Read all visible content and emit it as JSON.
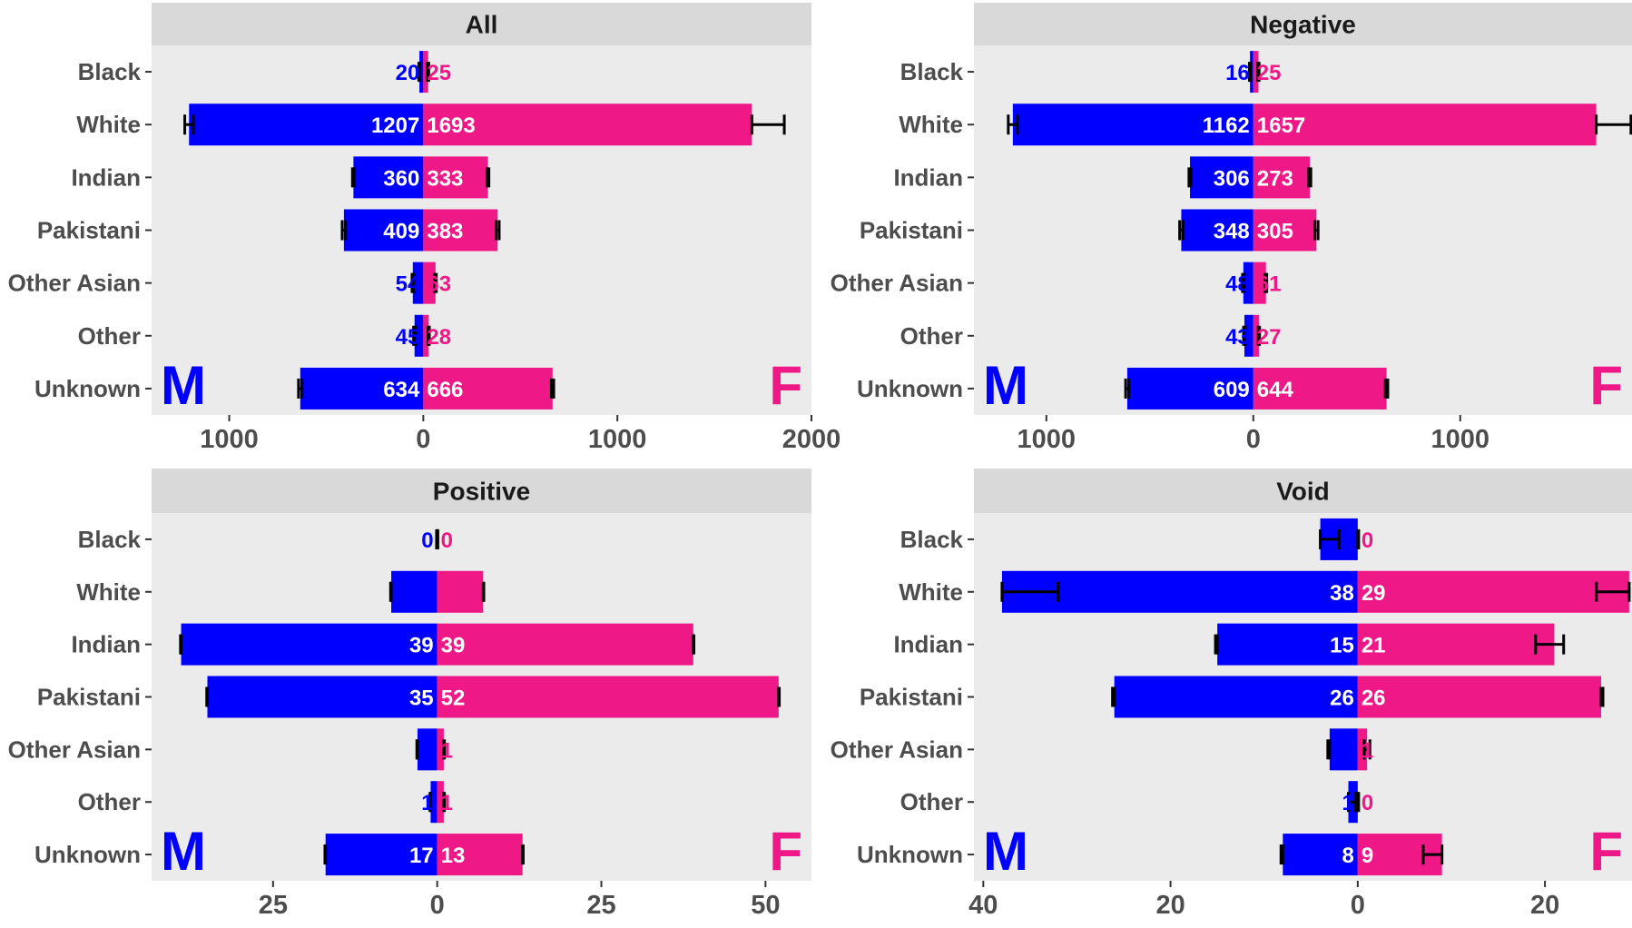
{
  "colors": {
    "male": "#0000ff",
    "female": "#ee1887",
    "panel_bg": "#ebebeb",
    "strip_bg": "#d9d9d9",
    "axis_text": "#4d4d4d",
    "on_bar_text": "#ffffff"
  },
  "chart_data": [
    {
      "type": "bar",
      "orientation": "horizontal-back-to-back",
      "title": "All",
      "categories": [
        "Black",
        "White",
        "Indian",
        "Pakistani",
        "Other Asian",
        "Other",
        "Unknown"
      ],
      "series": [
        {
          "name": "M",
          "values": [
            20,
            1207,
            360,
            409,
            54,
            45,
            634
          ],
          "error_bars": [
            [
              17,
              23
            ],
            [
              1185,
              1229
            ],
            [
              355,
              365
            ],
            [
              400,
              418
            ],
            [
              50,
              58
            ],
            [
              40,
              50
            ],
            [
              625,
              643
            ]
          ]
        },
        {
          "name": "F",
          "values": [
            25,
            1693,
            333,
            383,
            63,
            28,
            666
          ],
          "error_bars": [
            [
              22,
              28
            ],
            [
              1693,
              1860
            ],
            [
              328,
              338
            ],
            [
              375,
              391
            ],
            [
              59,
              67
            ],
            [
              25,
              31
            ],
            [
              660,
              672
            ]
          ]
        }
      ],
      "xlim": [
        -1400,
        2000
      ],
      "xticks": [
        -1000,
        0,
        1000,
        2000
      ],
      "xtick_labels": [
        "1000",
        "0",
        "1000",
        "2000"
      ],
      "left_label": "M",
      "right_label": "F"
    },
    {
      "type": "bar",
      "orientation": "horizontal-back-to-back",
      "title": "Negative",
      "categories": [
        "Black",
        "White",
        "Indian",
        "Pakistani",
        "Other Asian",
        "Other",
        "Unknown"
      ],
      "series": [
        {
          "name": "M",
          "values": [
            16,
            1162,
            306,
            348,
            48,
            43,
            609
          ],
          "error_bars": [
            [
              13,
              19
            ],
            [
              1140,
              1184
            ],
            [
              301,
              311
            ],
            [
              340,
              356
            ],
            [
              44,
              52
            ],
            [
              39,
              47
            ],
            [
              601,
              617
            ]
          ]
        },
        {
          "name": "F",
          "values": [
            25,
            1657,
            273,
            305,
            61,
            27,
            644
          ],
          "error_bars": [
            [
              22,
              28
            ],
            [
              1657,
              1825
            ],
            [
              268,
              278
            ],
            [
              297,
              313
            ],
            [
              57,
              65
            ],
            [
              24,
              30
            ],
            [
              638,
              650
            ]
          ]
        }
      ],
      "xlim": [
        -1350,
        1830
      ],
      "xticks": [
        -1000,
        0,
        1000
      ],
      "xtick_labels": [
        "1000",
        "0",
        "1000"
      ],
      "left_label": "M",
      "right_label": "F"
    },
    {
      "type": "bar",
      "orientation": "horizontal-back-to-back",
      "title": "Positive",
      "categories": [
        "Black",
        "White",
        "Indian",
        "Pakistani",
        "Other Asian",
        "Other",
        "Unknown"
      ],
      "series": [
        {
          "name": "M",
          "values": [
            0,
            7,
            39,
            35,
            3,
            1,
            17
          ],
          "error_bars": [
            [
              0,
              0.1
            ],
            [
              7,
              7.1
            ],
            [
              39,
              39.1
            ],
            [
              35,
              35.1
            ],
            [
              3,
              3.1
            ],
            [
              1,
              1.1
            ],
            [
              17,
              17.1
            ]
          ]
        },
        {
          "name": "F",
          "values": [
            0,
            7,
            39,
            52,
            1,
            1,
            13
          ],
          "error_bars": [
            [
              0,
              0.1
            ],
            [
              7,
              7.1
            ],
            [
              39,
              39.1
            ],
            [
              52,
              52.1
            ],
            [
              1,
              1.1
            ],
            [
              1,
              1.1
            ],
            [
              13,
              13.1
            ]
          ]
        }
      ],
      "xlim": [
        -43.5,
        57
      ],
      "xticks": [
        -25,
        0,
        25,
        50
      ],
      "xtick_labels": [
        "25",
        "0",
        "25",
        "50"
      ],
      "left_label": "M",
      "right_label": "F"
    },
    {
      "type": "bar",
      "orientation": "horizontal-back-to-back",
      "title": "Void",
      "categories": [
        "Black",
        "White",
        "Indian",
        "Pakistani",
        "Other Asian",
        "Other",
        "Unknown"
      ],
      "series": [
        {
          "name": "M",
          "values": [
            4,
            38,
            15,
            26,
            3,
            1,
            8
          ],
          "error_bars": [
            [
              2,
              4
            ],
            [
              32,
              38
            ],
            [
              15,
              15.2
            ],
            [
              26,
              26.2
            ],
            [
              3,
              3.2
            ],
            [
              0.2,
              1
            ],
            [
              8,
              8.2
            ]
          ]
        },
        {
          "name": "F",
          "values": [
            0,
            29,
            21,
            26,
            1,
            0,
            9
          ],
          "error_bars": [
            [
              0,
              0.1
            ],
            [
              25.5,
              29
            ],
            [
              19,
              22
            ],
            [
              26,
              26.2
            ],
            [
              0.7,
              1.3
            ],
            [
              0,
              0.1
            ],
            [
              7,
              9
            ]
          ]
        }
      ],
      "xlim": [
        -41,
        29.3
      ],
      "xticks": [
        -40,
        -20,
        0,
        20
      ],
      "xtick_labels": [
        "40",
        "20",
        "0",
        "20"
      ],
      "left_label": "M",
      "right_label": "F"
    }
  ]
}
